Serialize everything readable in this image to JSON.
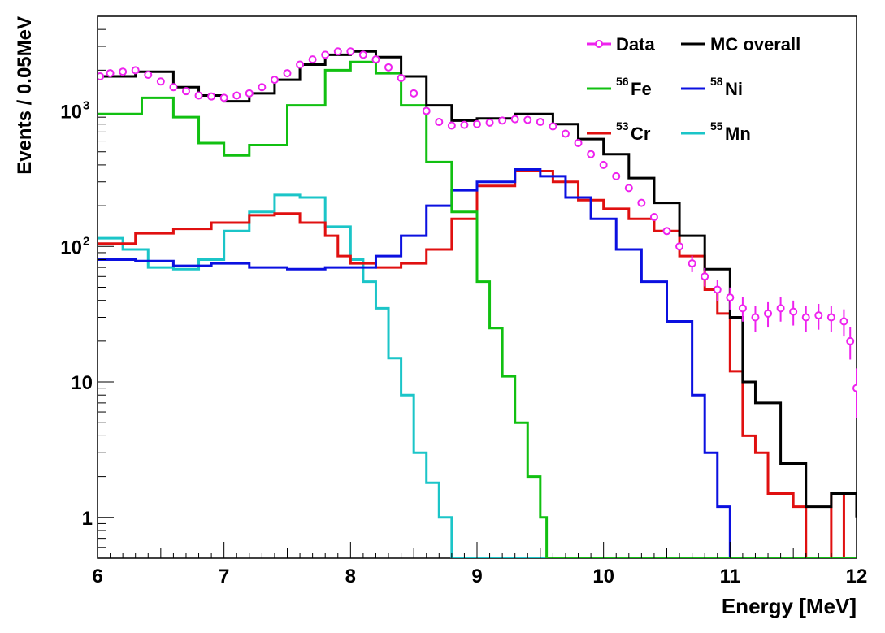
{
  "chart_data": {
    "type": "line",
    "style": "step histogram, log y scale",
    "xlabel": "Energy [MeV]",
    "ylabel": "Events / 0.05MeV",
    "xlim": [
      6,
      12
    ],
    "ylim": [
      0.5,
      5000
    ],
    "yscale": "log",
    "grid": false,
    "legend_position": "top-right",
    "x_ticks": [
      "6",
      "7",
      "8",
      "9",
      "10",
      "11",
      "12"
    ],
    "y_ticks": [
      {
        "value": 1,
        "label": "1"
      },
      {
        "value": 10,
        "label": "10"
      },
      {
        "value": 100,
        "label": "10",
        "sup": "2"
      },
      {
        "value": 1000,
        "label": "10",
        "sup": "3"
      }
    ],
    "series": [
      {
        "name": "MC overall",
        "key": "mc",
        "color": "#000000",
        "style": "step",
        "points": [
          [
            6.0,
            1800
          ],
          [
            6.3,
            1950
          ],
          [
            6.6,
            1500
          ],
          [
            6.8,
            1300
          ],
          [
            7.0,
            1180
          ],
          [
            7.2,
            1350
          ],
          [
            7.4,
            1700
          ],
          [
            7.6,
            2200
          ],
          [
            7.8,
            2600
          ],
          [
            8.0,
            2750
          ],
          [
            8.2,
            2500
          ],
          [
            8.4,
            1800
          ],
          [
            8.6,
            1100
          ],
          [
            8.8,
            850
          ],
          [
            9.0,
            880
          ],
          [
            9.3,
            950
          ],
          [
            9.6,
            800
          ],
          [
            9.8,
            620
          ],
          [
            10.0,
            480
          ],
          [
            10.2,
            320
          ],
          [
            10.4,
            210
          ],
          [
            10.6,
            120
          ],
          [
            10.8,
            68
          ],
          [
            11.0,
            30
          ],
          [
            11.1,
            10
          ],
          [
            11.2,
            7
          ],
          [
            11.4,
            2.5
          ],
          [
            11.6,
            1.2
          ],
          [
            11.8,
            1.5
          ],
          [
            12.0,
            1.0
          ]
        ]
      },
      {
        "name": "Fe",
        "sup": "56",
        "key": "fe",
        "color": "#11c011",
        "style": "step",
        "points": [
          [
            6.0,
            950
          ],
          [
            6.35,
            1250
          ],
          [
            6.6,
            900
          ],
          [
            6.8,
            580
          ],
          [
            7.0,
            470
          ],
          [
            7.2,
            560
          ],
          [
            7.5,
            1100
          ],
          [
            7.8,
            2000
          ],
          [
            8.0,
            2300
          ],
          [
            8.2,
            1900
          ],
          [
            8.4,
            1100
          ],
          [
            8.6,
            420
          ],
          [
            8.8,
            180
          ],
          [
            9.0,
            55
          ],
          [
            9.1,
            25
          ],
          [
            9.2,
            11
          ],
          [
            9.3,
            5
          ],
          [
            9.4,
            2
          ],
          [
            9.5,
            1.0
          ],
          [
            9.55,
            0.5
          ]
        ]
      },
      {
        "name": "Ni",
        "sup": "58",
        "key": "ni",
        "color": "#0b10e0",
        "style": "step",
        "points": [
          [
            6.0,
            80
          ],
          [
            6.3,
            78
          ],
          [
            6.6,
            72
          ],
          [
            6.9,
            75
          ],
          [
            7.2,
            70
          ],
          [
            7.5,
            68
          ],
          [
            7.8,
            70
          ],
          [
            8.0,
            70
          ],
          [
            8.2,
            85
          ],
          [
            8.4,
            120
          ],
          [
            8.6,
            200
          ],
          [
            8.8,
            260
          ],
          [
            9.0,
            300
          ],
          [
            9.3,
            370
          ],
          [
            9.5,
            330
          ],
          [
            9.7,
            230
          ],
          [
            9.9,
            160
          ],
          [
            10.1,
            95
          ],
          [
            10.3,
            55
          ],
          [
            10.5,
            28
          ],
          [
            10.7,
            8
          ],
          [
            10.8,
            3
          ],
          [
            10.9,
            1.2
          ],
          [
            11.0,
            0.5
          ]
        ]
      },
      {
        "name": "Cr",
        "sup": "53",
        "key": "cr",
        "color": "#e01010",
        "style": "step",
        "points": [
          [
            6.0,
            105
          ],
          [
            6.3,
            125
          ],
          [
            6.6,
            135
          ],
          [
            6.9,
            150
          ],
          [
            7.2,
            170
          ],
          [
            7.4,
            175
          ],
          [
            7.6,
            150
          ],
          [
            7.8,
            120
          ],
          [
            7.9,
            85
          ],
          [
            8.0,
            75
          ],
          [
            8.2,
            70
          ],
          [
            8.4,
            75
          ],
          [
            8.6,
            95
          ],
          [
            8.8,
            160
          ],
          [
            9.0,
            280
          ],
          [
            9.3,
            360
          ],
          [
            9.6,
            300
          ],
          [
            9.8,
            220
          ],
          [
            10.0,
            190
          ],
          [
            10.2,
            160
          ],
          [
            10.4,
            130
          ],
          [
            10.6,
            85
          ],
          [
            10.8,
            48
          ],
          [
            10.9,
            32
          ],
          [
            11.0,
            12
          ],
          [
            11.1,
            4
          ],
          [
            11.2,
            3
          ],
          [
            11.3,
            1.5
          ],
          [
            11.5,
            1.2
          ],
          [
            11.6,
            0.5
          ],
          [
            11.7,
            0.5
          ],
          [
            11.8,
            1.5
          ],
          [
            11.9,
            0.5
          ]
        ]
      },
      {
        "name": "Mn",
        "sup": "55",
        "key": "mn",
        "color": "#1bc5c8",
        "style": "step",
        "points": [
          [
            6.0,
            115
          ],
          [
            6.2,
            95
          ],
          [
            6.4,
            70
          ],
          [
            6.6,
            68
          ],
          [
            6.8,
            80
          ],
          [
            7.0,
            130
          ],
          [
            7.2,
            180
          ],
          [
            7.4,
            240
          ],
          [
            7.6,
            230
          ],
          [
            7.8,
            140
          ],
          [
            8.0,
            80
          ],
          [
            8.1,
            55
          ],
          [
            8.2,
            35
          ],
          [
            8.3,
            15
          ],
          [
            8.4,
            8
          ],
          [
            8.5,
            3
          ],
          [
            8.6,
            1.8
          ],
          [
            8.7,
            1.0
          ],
          [
            8.8,
            0.5
          ]
        ]
      },
      {
        "name": "Data",
        "key": "data",
        "color": "#ee22ee",
        "style": "markers",
        "points": [
          [
            6.02,
            1800
          ],
          [
            6.1,
            1900
          ],
          [
            6.2,
            1950
          ],
          [
            6.3,
            2000
          ],
          [
            6.4,
            1850
          ],
          [
            6.5,
            1650
          ],
          [
            6.6,
            1500
          ],
          [
            6.7,
            1400
          ],
          [
            6.8,
            1300
          ],
          [
            6.9,
            1280
          ],
          [
            7.0,
            1250
          ],
          [
            7.1,
            1300
          ],
          [
            7.2,
            1350
          ],
          [
            7.3,
            1500
          ],
          [
            7.4,
            1700
          ],
          [
            7.5,
            1900
          ],
          [
            7.6,
            2200
          ],
          [
            7.7,
            2400
          ],
          [
            7.8,
            2600
          ],
          [
            7.9,
            2750
          ],
          [
            8.0,
            2750
          ],
          [
            8.1,
            2600
          ],
          [
            8.2,
            2400
          ],
          [
            8.3,
            2100
          ],
          [
            8.4,
            1750
          ],
          [
            8.5,
            1350
          ],
          [
            8.6,
            1000
          ],
          [
            8.7,
            830
          ],
          [
            8.8,
            780
          ],
          [
            8.9,
            790
          ],
          [
            9.0,
            800
          ],
          [
            9.1,
            820
          ],
          [
            9.2,
            850
          ],
          [
            9.3,
            870
          ],
          [
            9.4,
            860
          ],
          [
            9.5,
            830
          ],
          [
            9.6,
            770
          ],
          [
            9.7,
            680
          ],
          [
            9.8,
            580
          ],
          [
            9.9,
            480
          ],
          [
            10.0,
            400
          ],
          [
            10.1,
            330
          ],
          [
            10.2,
            270
          ],
          [
            10.3,
            210
          ],
          [
            10.4,
            165
          ],
          [
            10.5,
            130
          ],
          [
            10.6,
            100
          ],
          [
            10.7,
            75
          ],
          [
            10.8,
            60
          ],
          [
            10.9,
            48
          ],
          [
            11.0,
            42
          ],
          [
            11.1,
            35
          ],
          [
            11.2,
            30
          ],
          [
            11.3,
            32
          ],
          [
            11.4,
            35
          ],
          [
            11.5,
            33
          ],
          [
            11.6,
            30
          ],
          [
            11.7,
            31
          ],
          [
            11.8,
            30
          ],
          [
            11.9,
            28
          ],
          [
            11.95,
            20
          ],
          [
            12.0,
            9
          ]
        ]
      }
    ]
  }
}
